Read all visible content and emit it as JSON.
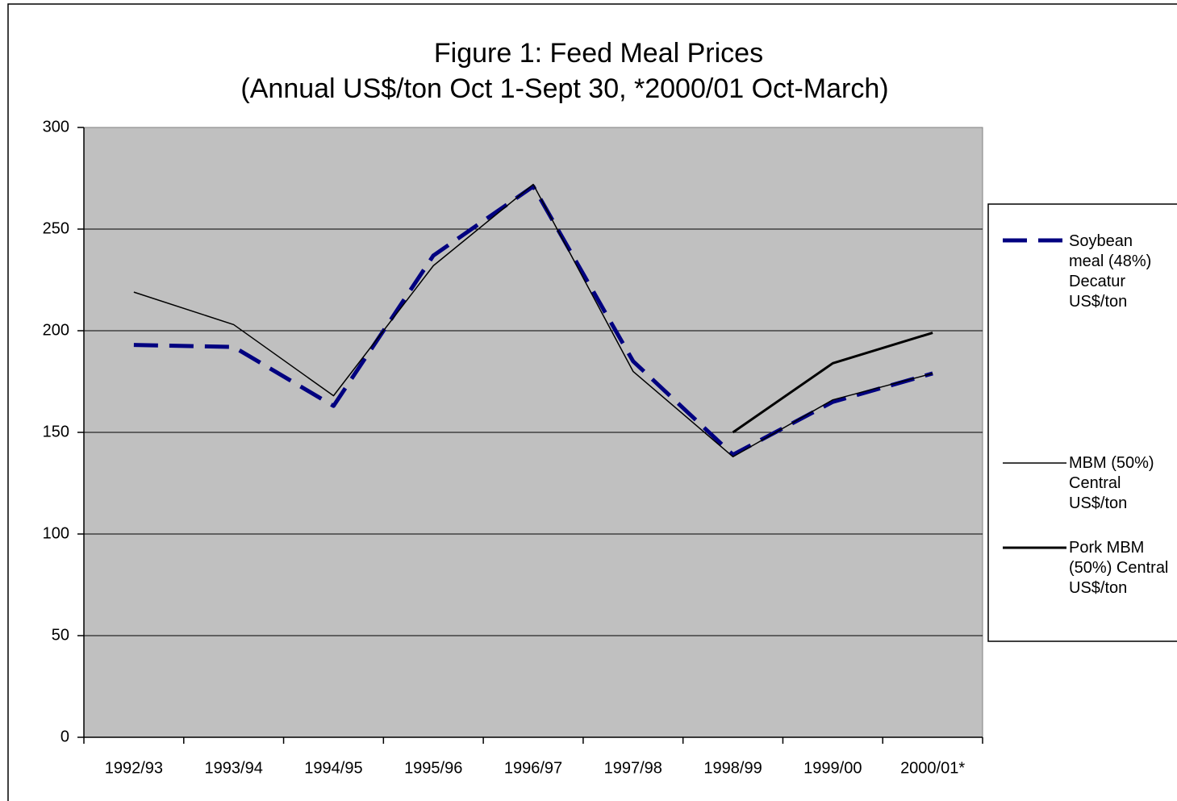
{
  "chart_data": {
    "type": "line",
    "title": "Figure 1:  Feed Meal Prices",
    "subtitle": "(Annual US$/ton Oct 1-Sept 30, *2000/01 Oct-March)",
    "categories": [
      "1992/93",
      "1993/94",
      "1994/95",
      "1995/96",
      "1996/97",
      "1997/98",
      "1998/99",
      "1999/00",
      "2000/01*"
    ],
    "series": [
      {
        "name": "Soybean meal (48%) Decatur US$/ton",
        "color": "#000080",
        "values": [
          193,
          192,
          163,
          237,
          271,
          185,
          139,
          165,
          179
        ]
      },
      {
        "name": "MBM (50%) Central US$/ton",
        "color": "#000000",
        "values": [
          219,
          203,
          168,
          232,
          272,
          180,
          138,
          166,
          179
        ]
      },
      {
        "name": "Pork MBM (50%) Central US$/ton",
        "color": "#000000",
        "values": [
          null,
          null,
          null,
          null,
          null,
          null,
          150,
          184,
          199
        ]
      }
    ],
    "ylim": [
      0,
      300
    ],
    "yticks": [
      0,
      50,
      100,
      150,
      200,
      250,
      300
    ],
    "grid": true,
    "legend": "right"
  }
}
